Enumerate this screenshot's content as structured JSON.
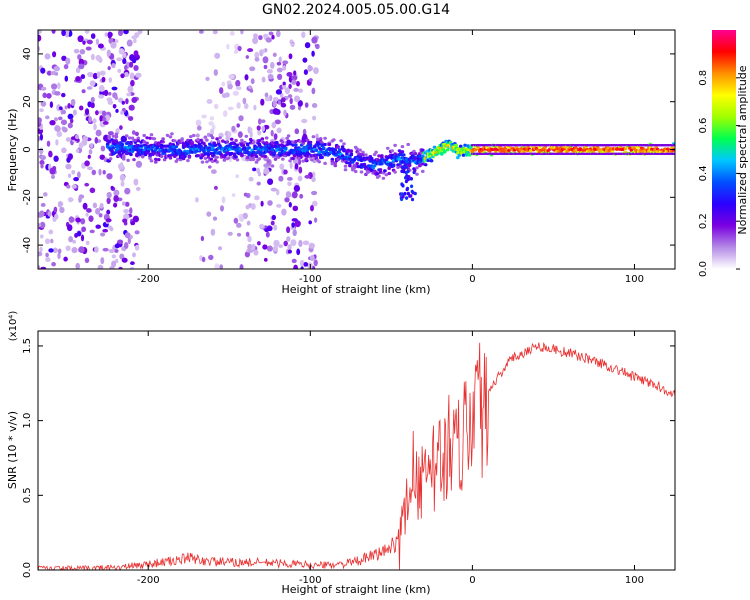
{
  "title": "GN02.2024.005.05.00.G14",
  "chart_data": [
    {
      "type": "heatmap",
      "xlabel": "Height of straight line (km)",
      "ylabel": "Frequency (Hz)",
      "xlim": [
        -268,
        125
      ],
      "ylim": [
        -50,
        50
      ],
      "xticks": [
        -200,
        -100,
        0,
        100
      ],
      "yticks": [
        -40,
        -20,
        0,
        20,
        40
      ],
      "colorbar": {
        "label": "Normalized spectral amplitude",
        "range": [
          0,
          1
        ],
        "ticks": [
          "0.0",
          "0.2",
          "0.4",
          "0.6",
          "0.8"
        ],
        "colormap": [
          "#ffffff",
          "#b48ae6",
          "#7a00e0",
          "#2b00ff",
          "#0050ff",
          "#00c8ff",
          "#00ff50",
          "#a0ff00",
          "#ffff00",
          "#ff9000",
          "#ff0000",
          "#ff0090"
        ]
      },
      "ridge": [
        {
          "x": -220,
          "f": 1
        },
        {
          "x": -200,
          "f": 0
        },
        {
          "x": -150,
          "f": 0
        },
        {
          "x": -100,
          "f": 0
        },
        {
          "x": -80,
          "f": -2
        },
        {
          "x": -60,
          "f": -7
        },
        {
          "x": -45,
          "f": -4
        },
        {
          "x": -35,
          "f": -5
        },
        {
          "x": -25,
          "f": -2
        },
        {
          "x": -15,
          "f": 2
        },
        {
          "x": -8,
          "f": -1
        },
        {
          "x": 0,
          "f": 0
        },
        {
          "x": 50,
          "f": 0
        },
        {
          "x": 125,
          "f": 0
        }
      ]
    },
    {
      "type": "line",
      "xlabel": "Height of straight line (km)",
      "ylabel": "SNR (10 * v/v)",
      "yscale_label": "(x10⁴)",
      "xlim": [
        -268,
        125
      ],
      "ylim": [
        0,
        1.6
      ],
      "xticks": [
        -200,
        -100,
        0,
        100
      ],
      "yticks": [
        "0.0",
        "0.5",
        "1.0",
        "1.5"
      ],
      "color": "#e83030",
      "x": [
        -268,
        -240,
        -215,
        -200,
        -185,
        -175,
        -165,
        -150,
        -130,
        -110,
        -95,
        -80,
        -70,
        -60,
        -50,
        -45,
        -40,
        -37,
        -35,
        -30,
        -25,
        -20,
        -15,
        -10,
        -5,
        0,
        5,
        10,
        15,
        20,
        25,
        30,
        40,
        50,
        60,
        70,
        80,
        90,
        100,
        110,
        125
      ],
      "y": [
        0.01,
        0.01,
        0.02,
        0.04,
        0.06,
        0.08,
        0.06,
        0.05,
        0.05,
        0.04,
        0.03,
        0.04,
        0.06,
        0.1,
        0.15,
        0.25,
        0.45,
        0.7,
        0.55,
        0.6,
        0.65,
        0.75,
        0.82,
        0.88,
        0.95,
        1.02,
        1.1,
        1.2,
        1.28,
        1.36,
        1.42,
        1.45,
        1.5,
        1.48,
        1.45,
        1.42,
        1.38,
        1.34,
        1.29,
        1.25,
        1.18
      ]
    }
  ]
}
